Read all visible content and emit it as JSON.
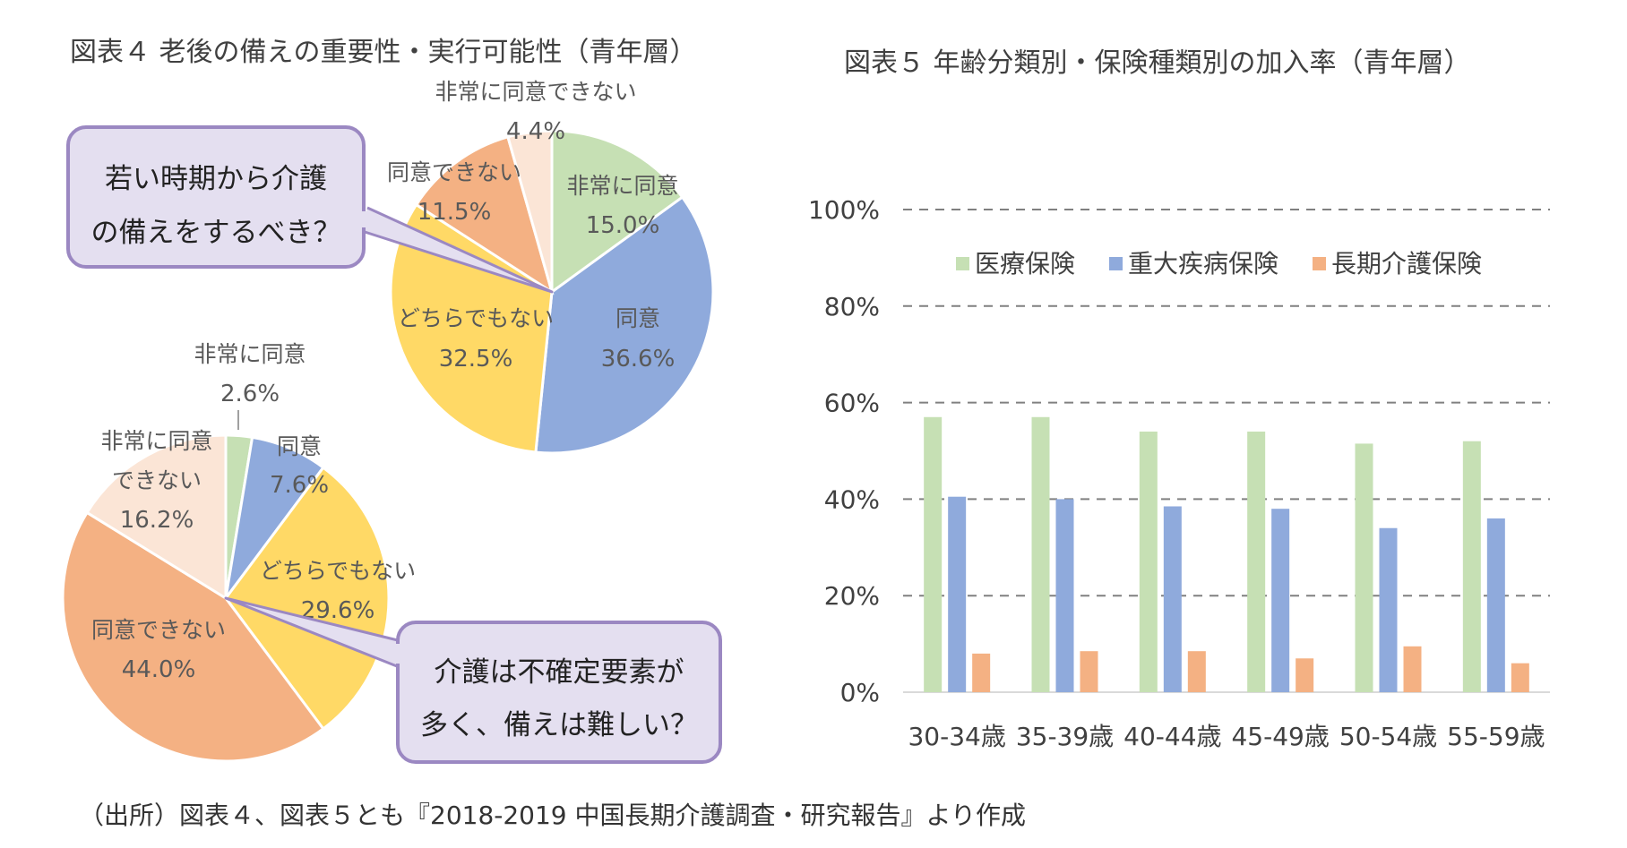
{
  "fig4": {
    "title": "図表４ 老後の備えの重要性・実行可能性（青年層）",
    "callout_top": [
      "若い時期から介護",
      "の備えをするべき？"
    ],
    "callout_bottom": [
      "介護は不確定要素が",
      "多く、備えは難しい？"
    ]
  },
  "fig5": {
    "title": "図表５ 年齢分類別・保険種類別の加入率（青年層）"
  },
  "source": "（出所）図表４、図表５とも『2018-2019 中国長期介護調査・研究報告』より作成",
  "colors": {
    "green": "#c6e0b4",
    "blue": "#8faadc",
    "yellow": "#ffd966",
    "orange": "#f4b183",
    "peach": "#fbe5d6",
    "callout_fill": "#e4dff0",
    "callout_border": "#9b88c2"
  },
  "chart_data": [
    {
      "type": "pie",
      "slices": [
        {
          "label": "非常に同意",
          "value": 15.0,
          "value_label": "15.0%",
          "color": "#c6e0b4"
        },
        {
          "label": "同意",
          "value": 36.6,
          "value_label": "36.6%",
          "color": "#8faadc"
        },
        {
          "label": "どちらでもない",
          "value": 32.5,
          "value_label": "32.5%",
          "color": "#ffd966"
        },
        {
          "label": "同意できない",
          "value": 11.5,
          "value_label": "11.5%",
          "color": "#f4b183"
        },
        {
          "label": "非常に同意できない",
          "value": 4.4,
          "value_label": "4.4%",
          "color": "#fbe5d6"
        }
      ]
    },
    {
      "type": "pie",
      "slices": [
        {
          "label": "非常に同意",
          "value": 2.6,
          "value_label": "2.6%",
          "color": "#c6e0b4"
        },
        {
          "label": "同意",
          "value": 7.6,
          "value_label": "7.6%",
          "color": "#8faadc"
        },
        {
          "label": "どちらでもない",
          "value": 29.6,
          "value_label": "29.6%",
          "color": "#ffd966"
        },
        {
          "label": "同意できない",
          "value": 44.0,
          "value_label": "44.0%",
          "color": "#f4b183"
        },
        {
          "label": "非常に同意できない",
          "value": 16.2,
          "value_label": "16.2%",
          "color": "#fbe5d6"
        }
      ]
    },
    {
      "type": "bar",
      "categories": [
        "30-34歳",
        "35-39歳",
        "40-44歳",
        "45-49歳",
        "50-54歳",
        "55-59歳"
      ],
      "series": [
        {
          "name": "医療保険",
          "values": [
            57,
            57,
            54,
            54,
            51.5,
            52
          ],
          "color": "#c6e0b4"
        },
        {
          "name": "重大疾病保険",
          "values": [
            40.5,
            40,
            38.5,
            38,
            34,
            36
          ],
          "color": "#8faadc"
        },
        {
          "name": "長期介護保険",
          "values": [
            8,
            8.5,
            8.5,
            7,
            9.5,
            6
          ],
          "color": "#f4b183"
        }
      ],
      "ylim": [
        0,
        100
      ],
      "yticks": [
        "0%",
        "20%",
        "40%",
        "60%",
        "80%",
        "100%"
      ],
      "grid": true,
      "legend": "top"
    }
  ]
}
